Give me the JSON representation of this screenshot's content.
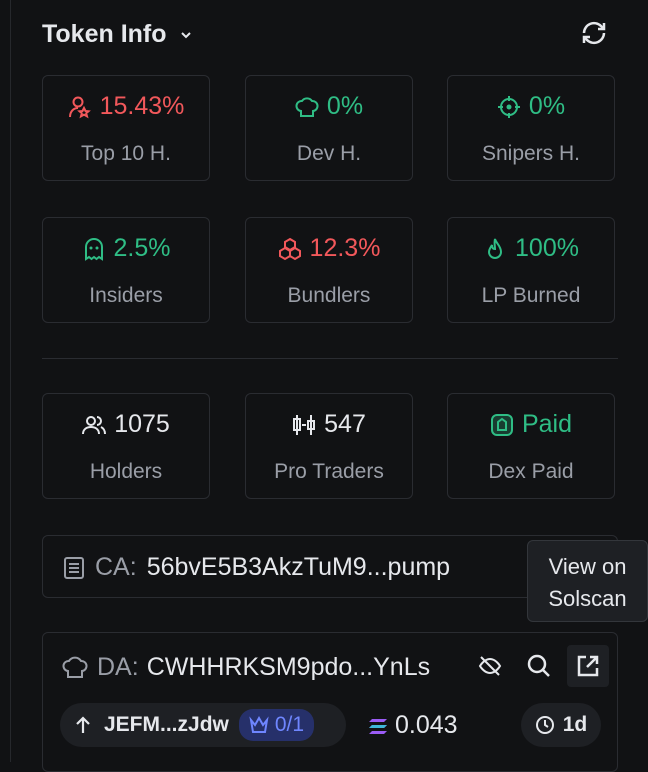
{
  "header": {
    "title": "Token Info"
  },
  "stats": [
    {
      "value": "15.43%",
      "label": "Top 10 H.",
      "color": "#f2585b"
    },
    {
      "value": "0%",
      "label": "Dev H.",
      "color": "#2fbd85"
    },
    {
      "value": "0%",
      "label": "Snipers H.",
      "color": "#2fbd85"
    },
    {
      "value": "2.5%",
      "label": "Insiders",
      "color": "#2fbd85"
    },
    {
      "value": "12.3%",
      "label": "Bundlers",
      "color": "#f2585b"
    },
    {
      "value": "100%",
      "label": "LP Burned",
      "color": "#2fbd85"
    },
    {
      "value": "1075",
      "label": "Holders",
      "color": "#e6e8ec"
    },
    {
      "value": "547",
      "label": "Pro Traders",
      "color": "#e6e8ec"
    },
    {
      "value": "Paid",
      "label": "Dex Paid",
      "color": "#2fbd85"
    }
  ],
  "ca": {
    "label": "CA:",
    "value": "56bvE5B3AkzTuM9...pump"
  },
  "tooltip": {
    "line1": "View on",
    "line2": "Solscan"
  },
  "da": {
    "label": "DA:",
    "value": "CWHHRKSM9pdo...YnLs"
  },
  "footer": {
    "wallet": "JEFM...zJdw",
    "badge": "0/1",
    "balance": "0.043",
    "age": "1d"
  }
}
